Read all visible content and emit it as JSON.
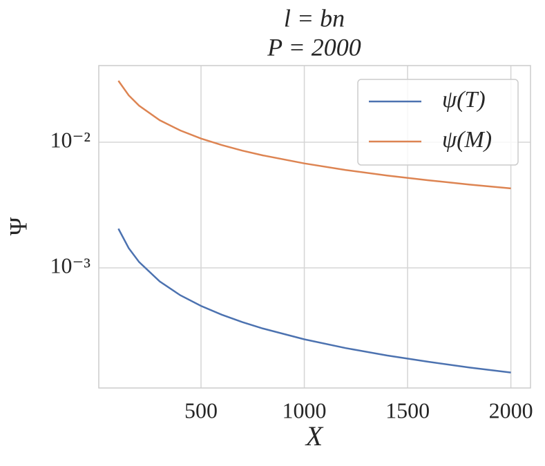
{
  "chart_data": {
    "type": "line",
    "title": "l = bn",
    "subtitle": "P = 2000",
    "x_label": "X",
    "y_label": "Ψ",
    "x": [
      100,
      150,
      200,
      300,
      400,
      500,
      600,
      700,
      800,
      1000,
      1200,
      1400,
      1600,
      1800,
      2000
    ],
    "series": [
      {
        "name": "ψ(T)",
        "color": "#4c72b0",
        "values": [
          0.00205,
          0.001435,
          0.001114,
          0.00078,
          0.000605,
          0.000498,
          0.000424,
          0.00037,
          0.000329,
          0.00027,
          0.00023,
          0.000201,
          0.000179,
          0.000161,
          0.000147
        ]
      },
      {
        "name": "ψ(M)",
        "color": "#dd8452",
        "values": [
          0.0308,
          0.0236,
          0.01954,
          0.01496,
          0.01239,
          0.01069,
          0.00949,
          0.00857,
          0.00785,
          0.00678,
          0.00601,
          0.00543,
          0.00498,
          0.0046,
          0.00429
        ]
      }
    ],
    "xlim": [
      5,
      2095
    ],
    "xticks": [
      500,
      1000,
      1500,
      2000
    ],
    "ylim": [
      0.0001107,
      0.0407
    ],
    "y_scale": "log",
    "yticks": [
      {
        "value": 0.01,
        "label": "10⁻²"
      },
      {
        "value": 0.001,
        "label": "10⁻³"
      }
    ],
    "grid": true,
    "legend": "upper right"
  }
}
